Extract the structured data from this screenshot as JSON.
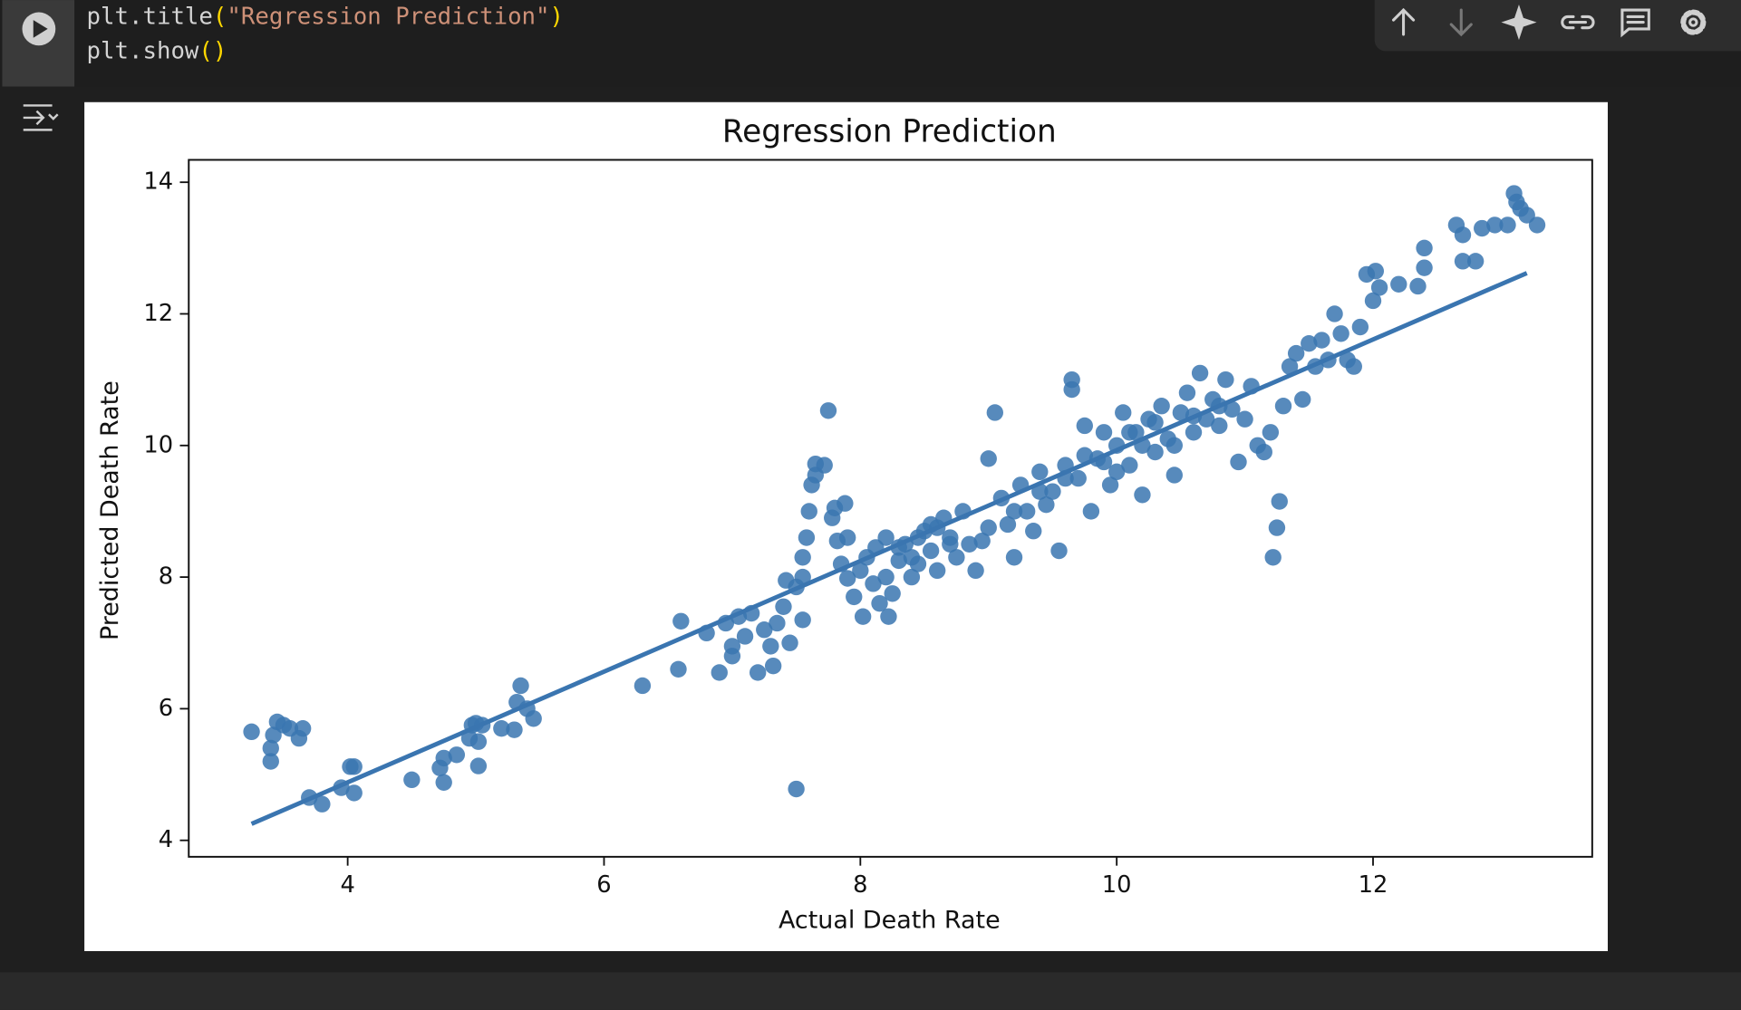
{
  "code": {
    "lines": [
      [
        "plt.title",
        "(",
        "\"Regression Prediction\"",
        ")"
      ],
      [
        "plt.show",
        "()"
      ]
    ]
  },
  "chart_data": {
    "type": "scatter",
    "title": "Regression Prediction",
    "x_label": "Actual Death Rate",
    "y_label": "Predicted Death Rate",
    "xlim": [
      2.76,
      13.71
    ],
    "ylim": [
      3.75,
      14.34
    ],
    "xticks": [
      4,
      6,
      8,
      10,
      12
    ],
    "yticks": [
      4,
      6,
      8,
      10,
      12,
      14
    ],
    "grid": false,
    "series": [
      {
        "type": "scatter",
        "color": "#3a75b0",
        "x": [
          3.25,
          3.4,
          3.42,
          3.45,
          3.5,
          3.55,
          3.62,
          3.65,
          3.4,
          3.7,
          3.8,
          3.95,
          4.02,
          4.05,
          4.05,
          4.5,
          4.72,
          4.75,
          4.75,
          4.85,
          4.95,
          4.97,
          5.0,
          5.02,
          5.05,
          5.02,
          5.2,
          5.3,
          5.32,
          5.35,
          5.4,
          5.45,
          6.3,
          6.58,
          6.6,
          6.8,
          6.9,
          6.95,
          7.0,
          7.0,
          7.05,
          7.1,
          7.15,
          7.2,
          7.25,
          7.3,
          7.32,
          7.35,
          7.4,
          7.42,
          7.45,
          7.5,
          7.5,
          7.55,
          7.55,
          7.55,
          7.58,
          7.6,
          7.62,
          7.65,
          7.65,
          7.72,
          7.75,
          7.78,
          7.8,
          7.82,
          7.85,
          7.88,
          7.9,
          7.9,
          7.95,
          8.0,
          8.02,
          8.05,
          8.1,
          8.12,
          8.15,
          8.2,
          8.2,
          8.22,
          8.25,
          8.3,
          8.35,
          8.4,
          8.45,
          8.5,
          8.55,
          8.6,
          8.65,
          8.7,
          8.75,
          8.8,
          8.85,
          8.9,
          8.95,
          9.0,
          9.0,
          9.05,
          9.1,
          9.15,
          9.2,
          9.25,
          9.3,
          9.35,
          9.4,
          9.45,
          9.5,
          9.55,
          9.6,
          9.65,
          9.65,
          9.7,
          9.75,
          9.8,
          9.85,
          9.9,
          9.95,
          10.0,
          10.05,
          10.1,
          10.15,
          10.2,
          10.25,
          10.3,
          10.35,
          10.4,
          10.45,
          10.5,
          10.55,
          10.6,
          10.65,
          10.7,
          10.75,
          10.8,
          10.85,
          10.9,
          10.95,
          11.0,
          11.05,
          11.1,
          11.15,
          11.2,
          11.22,
          11.25,
          11.27,
          11.3,
          11.35,
          11.4,
          11.45,
          11.5,
          11.55,
          11.6,
          11.65,
          11.7,
          11.75,
          11.8,
          11.85,
          11.9,
          11.95,
          12.0,
          12.02,
          12.05,
          12.2,
          12.35,
          12.4,
          12.4,
          12.65,
          12.7,
          12.7,
          12.8,
          12.85,
          12.95,
          13.05,
          13.1,
          13.12,
          13.15,
          13.2,
          13.28,
          8.3,
          8.45,
          8.6,
          8.7,
          8.4,
          8.55,
          9.2,
          9.4,
          9.6,
          9.9,
          10.1,
          10.3,
          10.45,
          10.6,
          10.8,
          10.0,
          9.75,
          10.2
        ],
        "values": [
          5.65,
          5.2,
          5.6,
          5.8,
          5.75,
          5.7,
          5.55,
          5.7,
          5.4,
          4.65,
          4.55,
          4.8,
          5.12,
          5.12,
          4.72,
          4.92,
          5.1,
          4.88,
          5.25,
          5.3,
          5.55,
          5.75,
          5.78,
          5.5,
          5.75,
          5.13,
          5.7,
          5.68,
          6.1,
          6.35,
          6.0,
          5.85,
          6.35,
          6.6,
          7.33,
          7.15,
          6.55,
          7.3,
          6.95,
          6.8,
          7.4,
          7.1,
          7.45,
          6.55,
          7.2,
          6.95,
          6.65,
          7.3,
          7.55,
          7.95,
          7.0,
          7.85,
          4.78,
          8.0,
          7.35,
          8.3,
          8.6,
          9.0,
          9.4,
          9.55,
          9.72,
          9.7,
          10.53,
          8.9,
          9.05,
          8.55,
          8.2,
          9.12,
          8.6,
          7.98,
          7.7,
          8.1,
          7.4,
          8.3,
          7.9,
          8.45,
          7.6,
          8.0,
          8.6,
          7.4,
          7.75,
          8.25,
          8.5,
          8.0,
          8.2,
          8.7,
          8.4,
          8.1,
          8.9,
          8.6,
          8.3,
          9.0,
          8.5,
          8.1,
          8.55,
          9.8,
          8.75,
          10.5,
          9.2,
          8.8,
          8.3,
          9.4,
          9.0,
          8.7,
          9.6,
          9.1,
          9.3,
          8.4,
          9.7,
          11.0,
          10.85,
          9.5,
          10.3,
          9.0,
          9.8,
          10.2,
          9.4,
          10.0,
          10.5,
          9.7,
          10.2,
          9.25,
          10.4,
          9.9,
          10.6,
          10.1,
          9.55,
          10.5,
          10.8,
          10.2,
          11.1,
          10.4,
          10.7,
          10.3,
          11.0,
          10.55,
          9.75,
          10.4,
          10.9,
          10.0,
          9.9,
          10.2,
          8.3,
          8.75,
          9.15,
          10.6,
          11.2,
          11.4,
          10.7,
          11.55,
          11.2,
          11.6,
          11.3,
          12.0,
          11.7,
          11.3,
          11.2,
          11.8,
          12.6,
          12.2,
          12.65,
          12.4,
          12.45,
          12.42,
          13.0,
          12.7,
          13.35,
          12.8,
          13.2,
          12.8,
          13.3,
          13.35,
          13.35,
          13.83,
          13.7,
          13.6,
          13.5,
          13.35,
          8.45,
          8.6,
          8.75,
          8.5,
          8.3,
          8.8,
          9.0,
          9.3,
          9.5,
          9.75,
          10.2,
          10.35,
          10.0,
          10.45,
          10.6,
          9.6,
          9.85,
          10.0
        ]
      },
      {
        "type": "line",
        "color": "#3a75b0",
        "x": [
          3.25,
          13.2
        ],
        "values": [
          4.25,
          12.62
        ]
      }
    ]
  }
}
